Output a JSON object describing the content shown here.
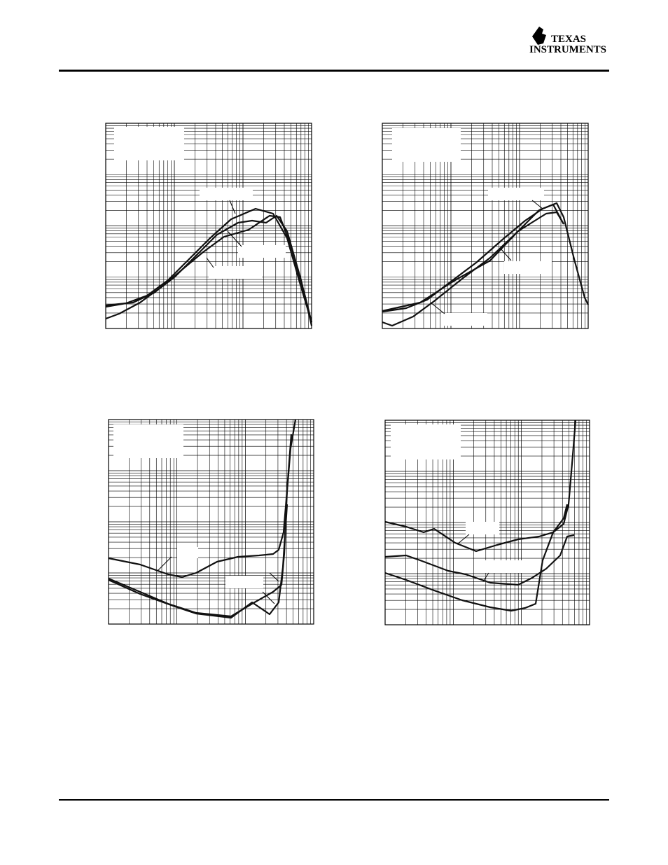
{
  "header": {
    "logo_line1": "TEXAS",
    "logo_line2": "INSTRUMENTS"
  }
}
